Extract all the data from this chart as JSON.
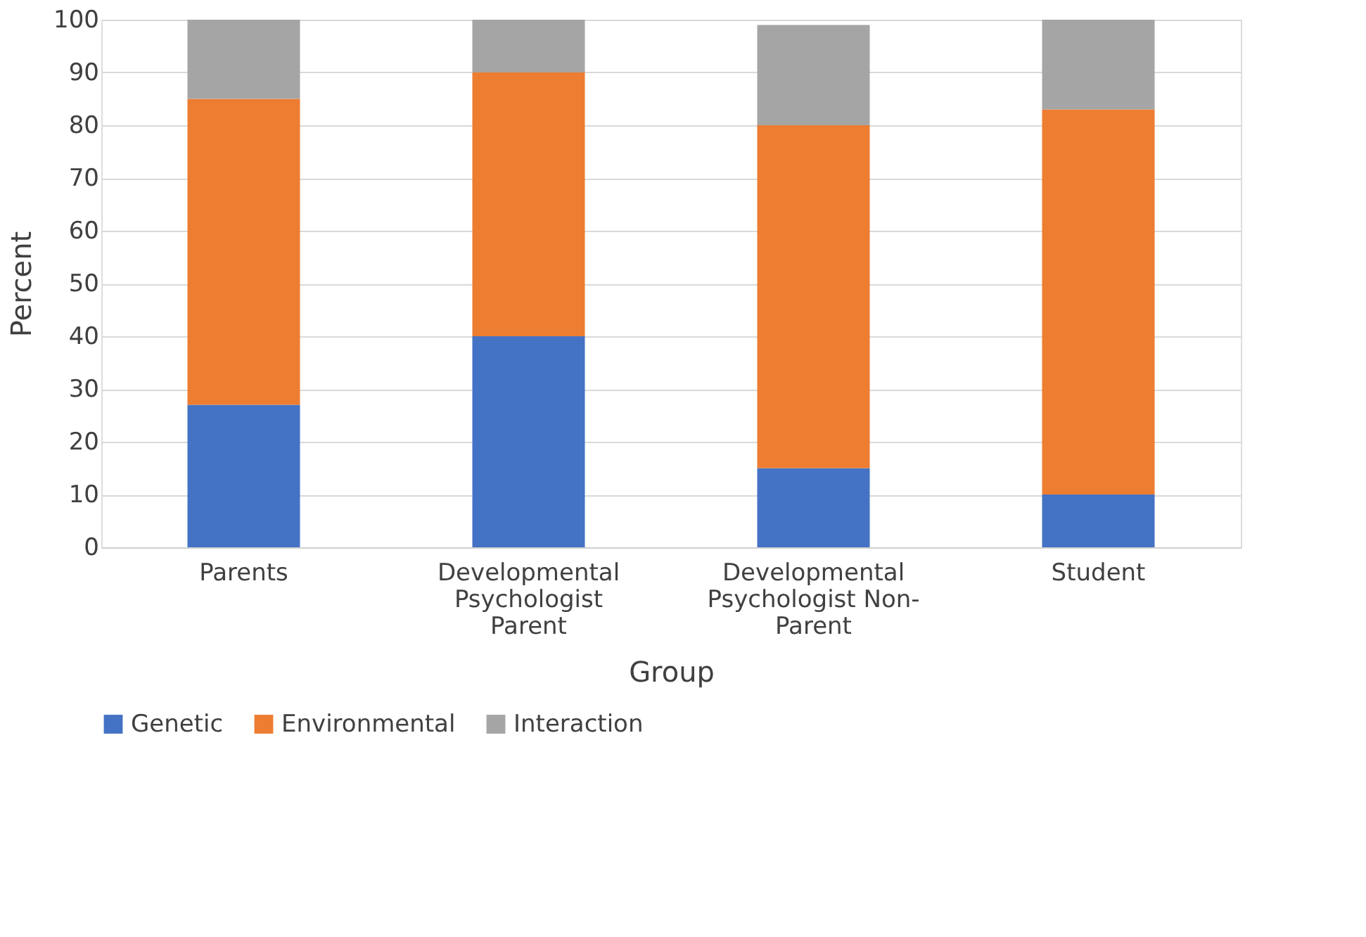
{
  "chart_data": {
    "type": "bar",
    "stacked": true,
    "xlabel": "Group",
    "ylabel": "Percent",
    "categories": [
      "Parents",
      "Developmental Psychologist Parent",
      "Developmental Psychologist Non-Parent",
      "Student"
    ],
    "series": [
      {
        "name": "Genetic",
        "color": "#4472c4",
        "values": [
          27,
          40,
          15,
          10
        ]
      },
      {
        "name": "Environmental",
        "color": "#ed7d31",
        "values": [
          58,
          50,
          65,
          73
        ]
      },
      {
        "name": "Interaction",
        "color": "#a5a5a5",
        "values": [
          15,
          10,
          19,
          17
        ]
      }
    ],
    "ylim": [
      0,
      100
    ],
    "yticks": [
      0,
      10,
      20,
      30,
      40,
      50,
      60,
      70,
      80,
      90,
      100
    ],
    "grid": "y",
    "legend": "bottom"
  }
}
